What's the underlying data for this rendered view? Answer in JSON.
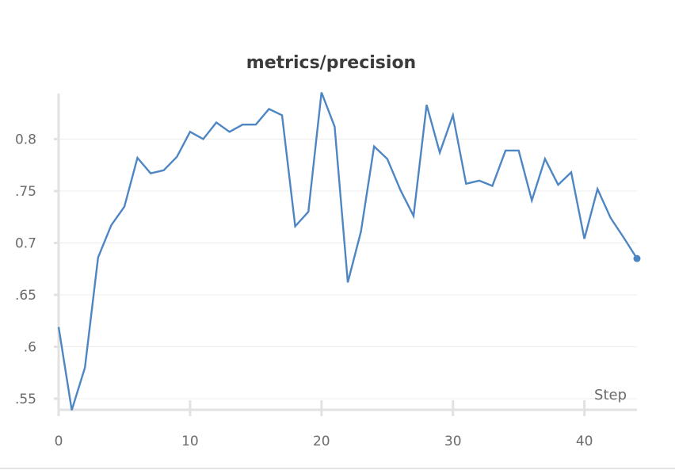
{
  "chart_data": {
    "type": "line",
    "title": "metrics/precision",
    "xlabel": "Step",
    "ylabel": "",
    "xlim": [
      0,
      44
    ],
    "ylim": [
      0.54,
      0.845
    ],
    "x_ticks": [
      0,
      10,
      20,
      30,
      40
    ],
    "y_ticks": [
      0.55,
      0.6,
      0.65,
      0.7,
      0.75,
      0.8
    ],
    "y_tick_labels": [
      ".55",
      ".6",
      ".65",
      "0.7",
      ".75",
      "0.8"
    ],
    "grid": true,
    "legend": "none",
    "line_color": "#4e86c4",
    "x": [
      0,
      1,
      2,
      3,
      4,
      5,
      6,
      7,
      8,
      9,
      10,
      11,
      12,
      13,
      14,
      15,
      16,
      17,
      18,
      19,
      20,
      21,
      22,
      23,
      24,
      25,
      26,
      27,
      28,
      29,
      30,
      31,
      32,
      33,
      34,
      35,
      36,
      37,
      38,
      39,
      40,
      41,
      42,
      43,
      44
    ],
    "values": [
      0.619,
      0.539,
      0.58,
      0.686,
      0.717,
      0.735,
      0.782,
      0.767,
      0.77,
      0.783,
      0.807,
      0.8,
      0.816,
      0.807,
      0.814,
      0.814,
      0.829,
      0.823,
      0.716,
      0.73,
      0.845,
      0.812,
      0.662,
      0.711,
      0.793,
      0.781,
      0.751,
      0.726,
      0.833,
      0.787,
      0.823,
      0.757,
      0.76,
      0.755,
      0.789,
      0.789,
      0.741,
      0.781,
      0.756,
      0.768,
      0.704,
      0.752,
      0.724,
      0.705,
      0.685
    ],
    "series_name": "precision"
  }
}
